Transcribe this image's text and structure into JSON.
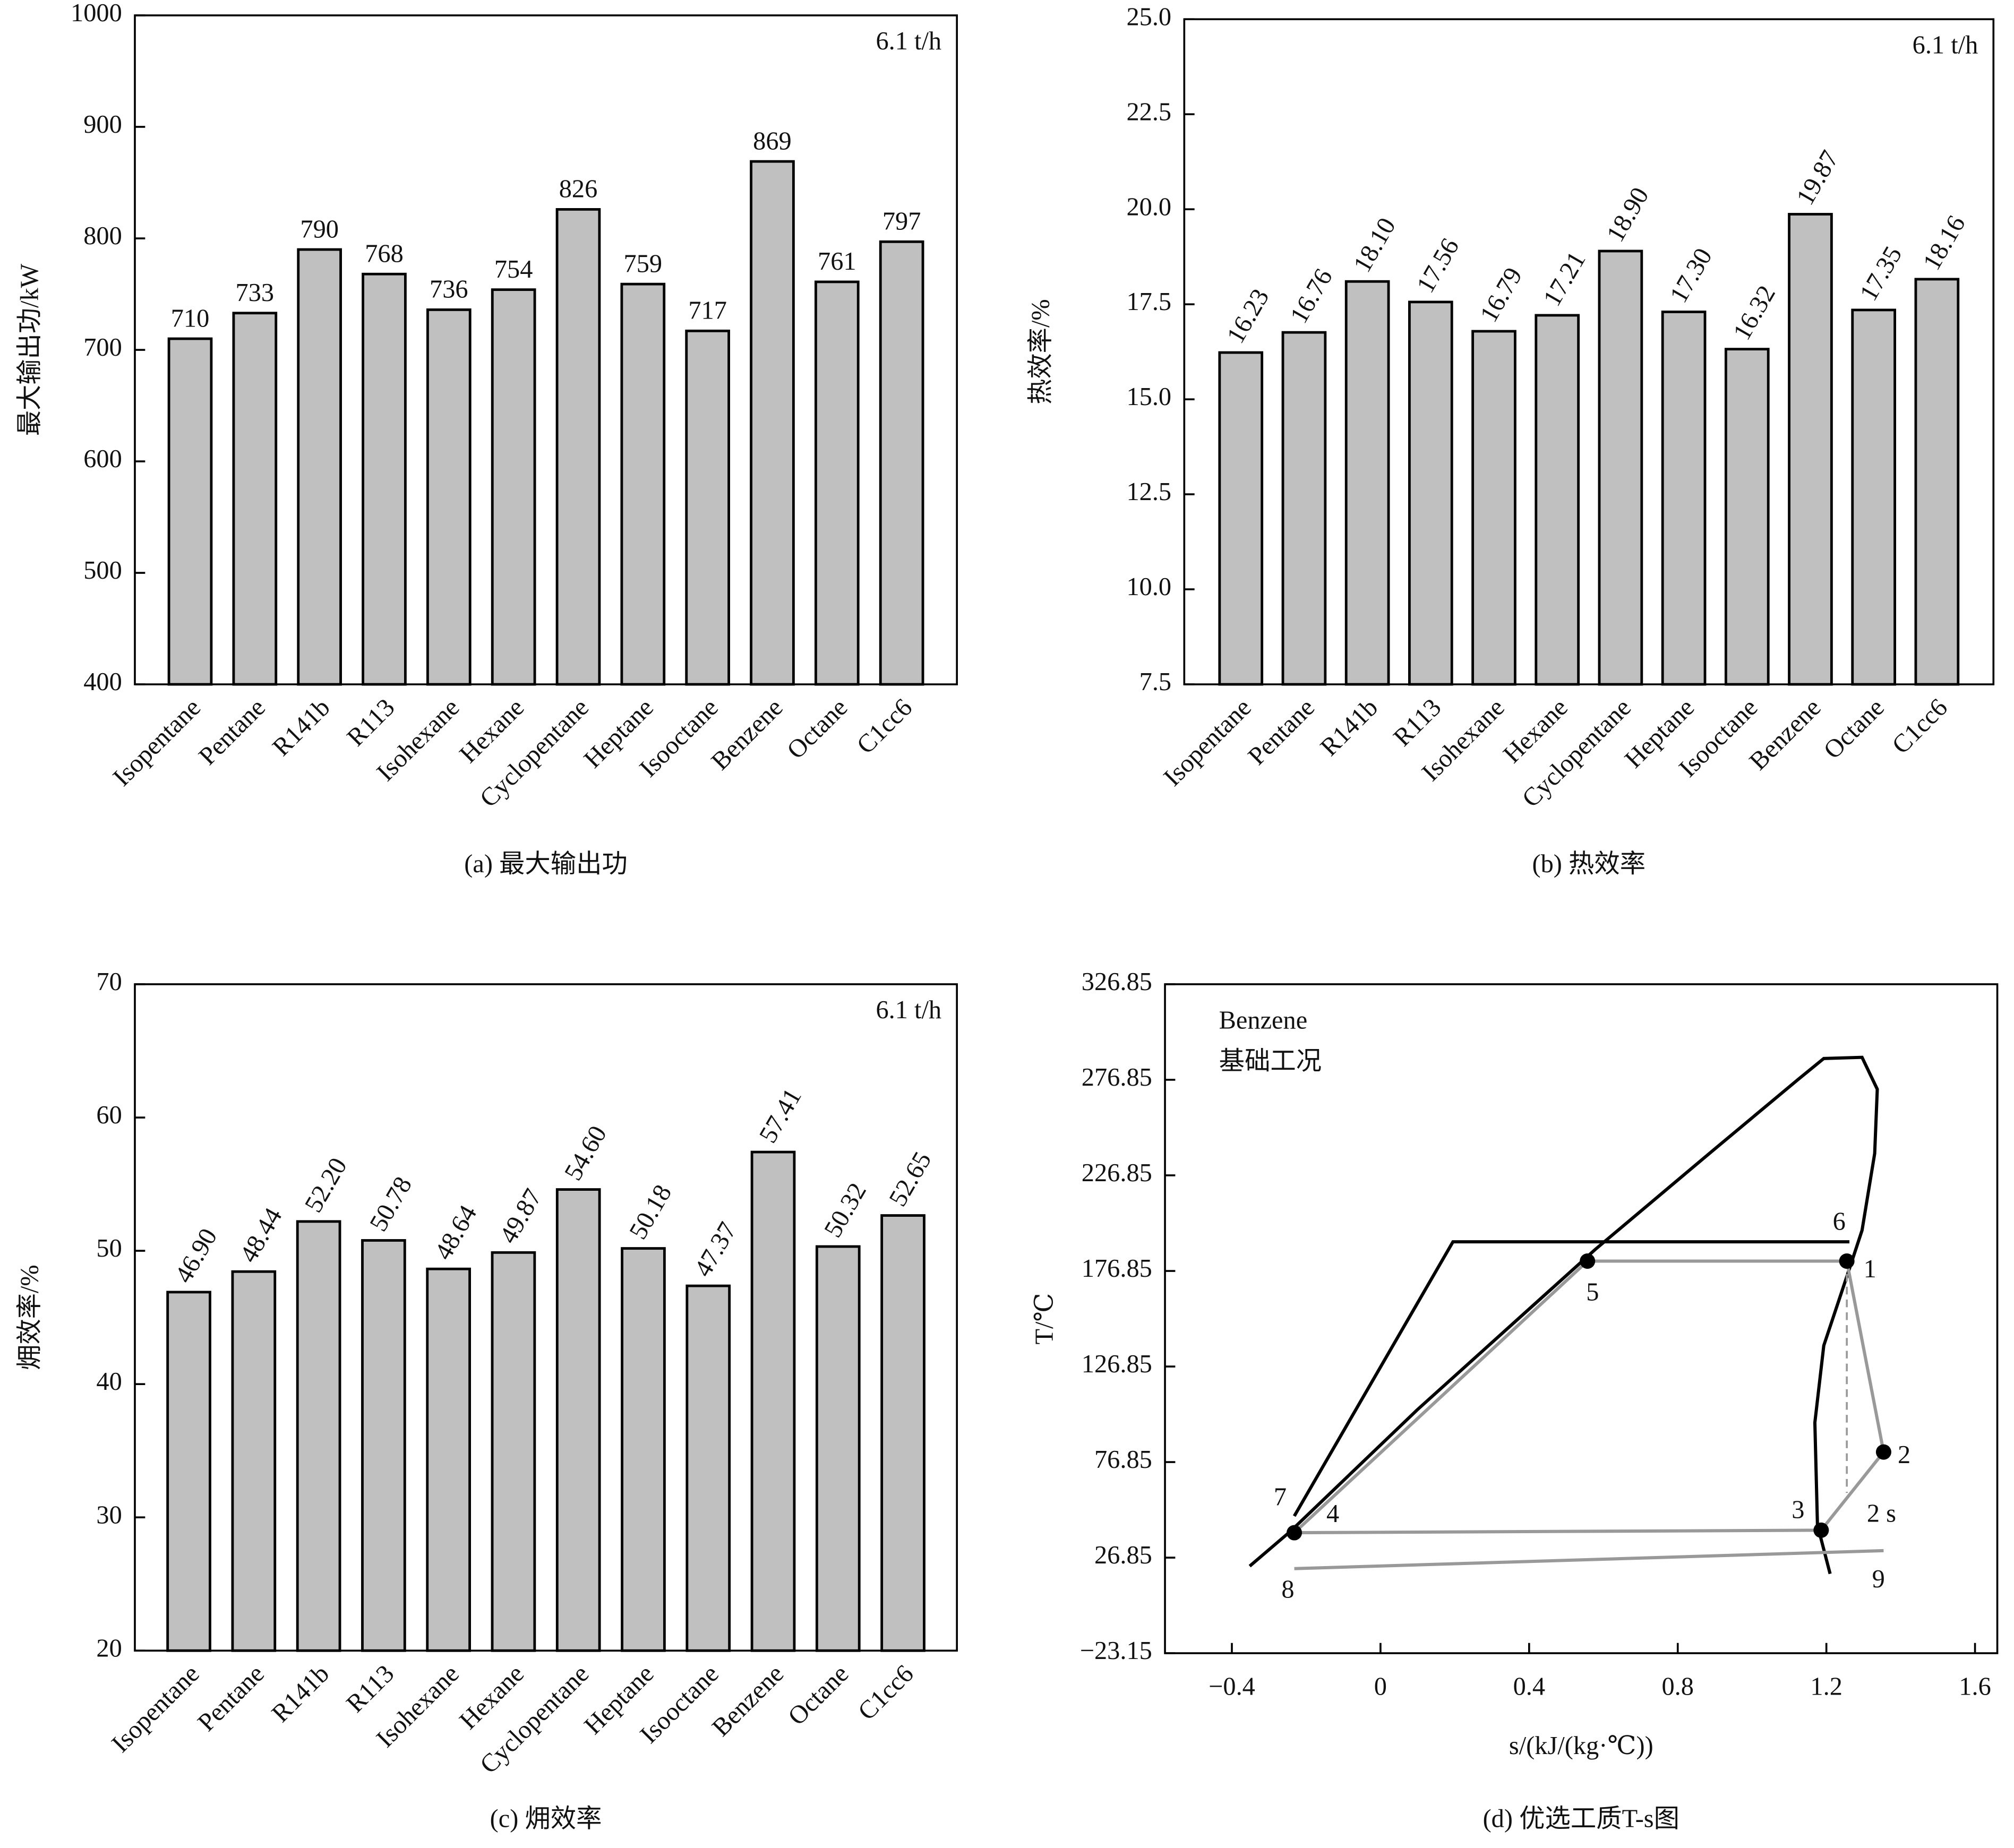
{
  "chart_data": [
    {
      "type": "bar",
      "caption": "(a) 最大输出功",
      "ylabel": "最大输出功/kW",
      "annotation": "6.1 t/h",
      "categories": [
        "Isopentane",
        "Pentane",
        "R141b",
        "R113",
        "Isohexane",
        "Hexane",
        "Cyclopentane",
        "Heptane",
        "Isooctane",
        "Benzene",
        "Octane",
        "C1cc6"
      ],
      "values": [
        710,
        733,
        790,
        768,
        736,
        754,
        826,
        759,
        717,
        869,
        761,
        797
      ],
      "color": "#c0c0c0",
      "ylim": [
        400,
        1000
      ],
      "yticks": [
        400,
        500,
        600,
        700,
        800,
        900,
        1000
      ]
    },
    {
      "type": "bar",
      "caption": "(b) 热效率",
      "ylabel": "热效率/%",
      "annotation": "6.1 t/h",
      "categories": [
        "Isopentane",
        "Pentane",
        "R141b",
        "R113",
        "Isohexane",
        "Hexane",
        "Cyclopentane",
        "Heptane",
        "Isooctane",
        "Benzene",
        "Octane",
        "C1cc6"
      ],
      "values": [
        16.23,
        16.76,
        18.1,
        17.56,
        16.79,
        17.21,
        18.9,
        17.3,
        16.32,
        19.87,
        17.35,
        18.16
      ],
      "value_labels": [
        "16.23",
        "16.76",
        "18.10",
        "17.56",
        "16.79",
        "17.21",
        "18.90",
        "17.30",
        "16.32",
        "19.87",
        "17.35",
        "18.16"
      ],
      "color": "#c0c0c0",
      "ylim": [
        7.5,
        25
      ],
      "yticks": [
        7.5,
        {
          "value": 10,
          "label": "10.0"
        },
        12.5,
        {
          "value": 15,
          "label": "15.0"
        },
        17.5,
        {
          "value": 20,
          "label": "20.0"
        },
        22.5,
        {
          "value": 25,
          "label": "25.0"
        }
      ]
    },
    {
      "type": "bar",
      "caption": "(c) 㶲效率",
      "ylabel": "㶲效率/%",
      "annotation": "6.1 t/h",
      "categories": [
        "Isopentane",
        "Pentane",
        "R141b",
        "R113",
        "Isohexane",
        "Hexane",
        "Cyclopentane",
        "Heptane",
        "Isooctane",
        "Benzene",
        "Octane",
        "C1cc6"
      ],
      "values": [
        46.9,
        48.44,
        52.2,
        50.78,
        48.64,
        49.87,
        54.6,
        50.18,
        47.37,
        57.41,
        50.32,
        52.65
      ],
      "value_labels": [
        "46.90",
        "48.44",
        "52.20",
        "50.78",
        "48.64",
        "49.87",
        "54.60",
        "50.18",
        "47.37",
        "57.41",
        "50.32",
        "52.65"
      ],
      "color": "#c0c0c0",
      "ylim": [
        20,
        70
      ],
      "yticks": [
        20,
        30,
        40,
        50,
        60,
        70
      ]
    },
    {
      "type": "line",
      "caption": "(d) 优选工质T-s图",
      "xlabel": "s/(kJ/(kg·℃))",
      "ylabel": "T/℃",
      "notes": [
        "Benzene",
        "基础工况"
      ],
      "xlim": [
        -0.58,
        1.66
      ],
      "xticks": [
        {
          "value": -0.4,
          "label": "−0.4"
        },
        0,
        0.4,
        0.8,
        1.2,
        1.6
      ],
      "ylim": [
        -23.15,
        326.85
      ],
      "yticks": [
        {
          "value": -23.15,
          "label": "−23.15"
        },
        26.85,
        76.85,
        126.85,
        176.85,
        226.85,
        276.85,
        326.85
      ],
      "series": [
        {
          "color": "#000000",
          "x": [
            -0.352,
            -0.243,
            0.099,
            0.578,
            0.885,
            1.125,
            1.193,
            1.296,
            1.337,
            1.33,
            1.296,
            1.262,
            1.193,
            1.169,
            1.176,
            1.21
          ],
          "values": [
            22.4,
            40.5,
            104.2,
            188.1,
            238.3,
            277.2,
            288.0,
            288.6,
            271.9,
            238.3,
            198.1,
            178.0,
            137.8,
            97.5,
            43.9,
            18.4
          ]
        },
        {
          "color": "#000000",
          "x": [
            -0.232,
            0.195,
            1.262
          ],
          "values": [
            48.6,
            192.1,
            192.1
          ]
        },
        {
          "color": "#999999",
          "x": [
            -0.232,
            0.557,
            1.255,
            1.354,
            1.186,
            -0.232
          ],
          "values": [
            39.9,
            182.0,
            182.0,
            82.1,
            41.2,
            39.9
          ]
        },
        {
          "color": "#999999",
          "dash": true,
          "x": [
            1.255,
            1.255
          ],
          "values": [
            182.0,
            60.7
          ]
        },
        {
          "color": "#999999",
          "x": [
            -0.232,
            1.354
          ],
          "values": [
            21.1,
            30.5
          ]
        }
      ],
      "annotations": [
        {
          "text": "1",
          "x": 1.255,
          "y": 182.0,
          "marker": true
        },
        {
          "text": "2",
          "x": 1.354,
          "y": 82.1,
          "marker": true
        },
        {
          "text": "2 s",
          "x": 1.255,
          "y": 60.7,
          "marker": false
        },
        {
          "text": "3",
          "x": 1.186,
          "y": 41.2,
          "marker": true
        },
        {
          "text": "4",
          "x": -0.232,
          "y": 39.9,
          "marker": true
        },
        {
          "text": "5",
          "x": 0.557,
          "y": 182.0,
          "marker": true
        },
        {
          "text": "6",
          "x": 1.262,
          "y": 192.1,
          "marker": false
        },
        {
          "text": "7",
          "x": -0.232,
          "y": 39.9,
          "marker": false
        },
        {
          "text": "8",
          "x": -0.232,
          "y": 21.1,
          "marker": false
        },
        {
          "text": "9",
          "x": 1.354,
          "y": 30.5,
          "marker": false
        }
      ]
    }
  ]
}
